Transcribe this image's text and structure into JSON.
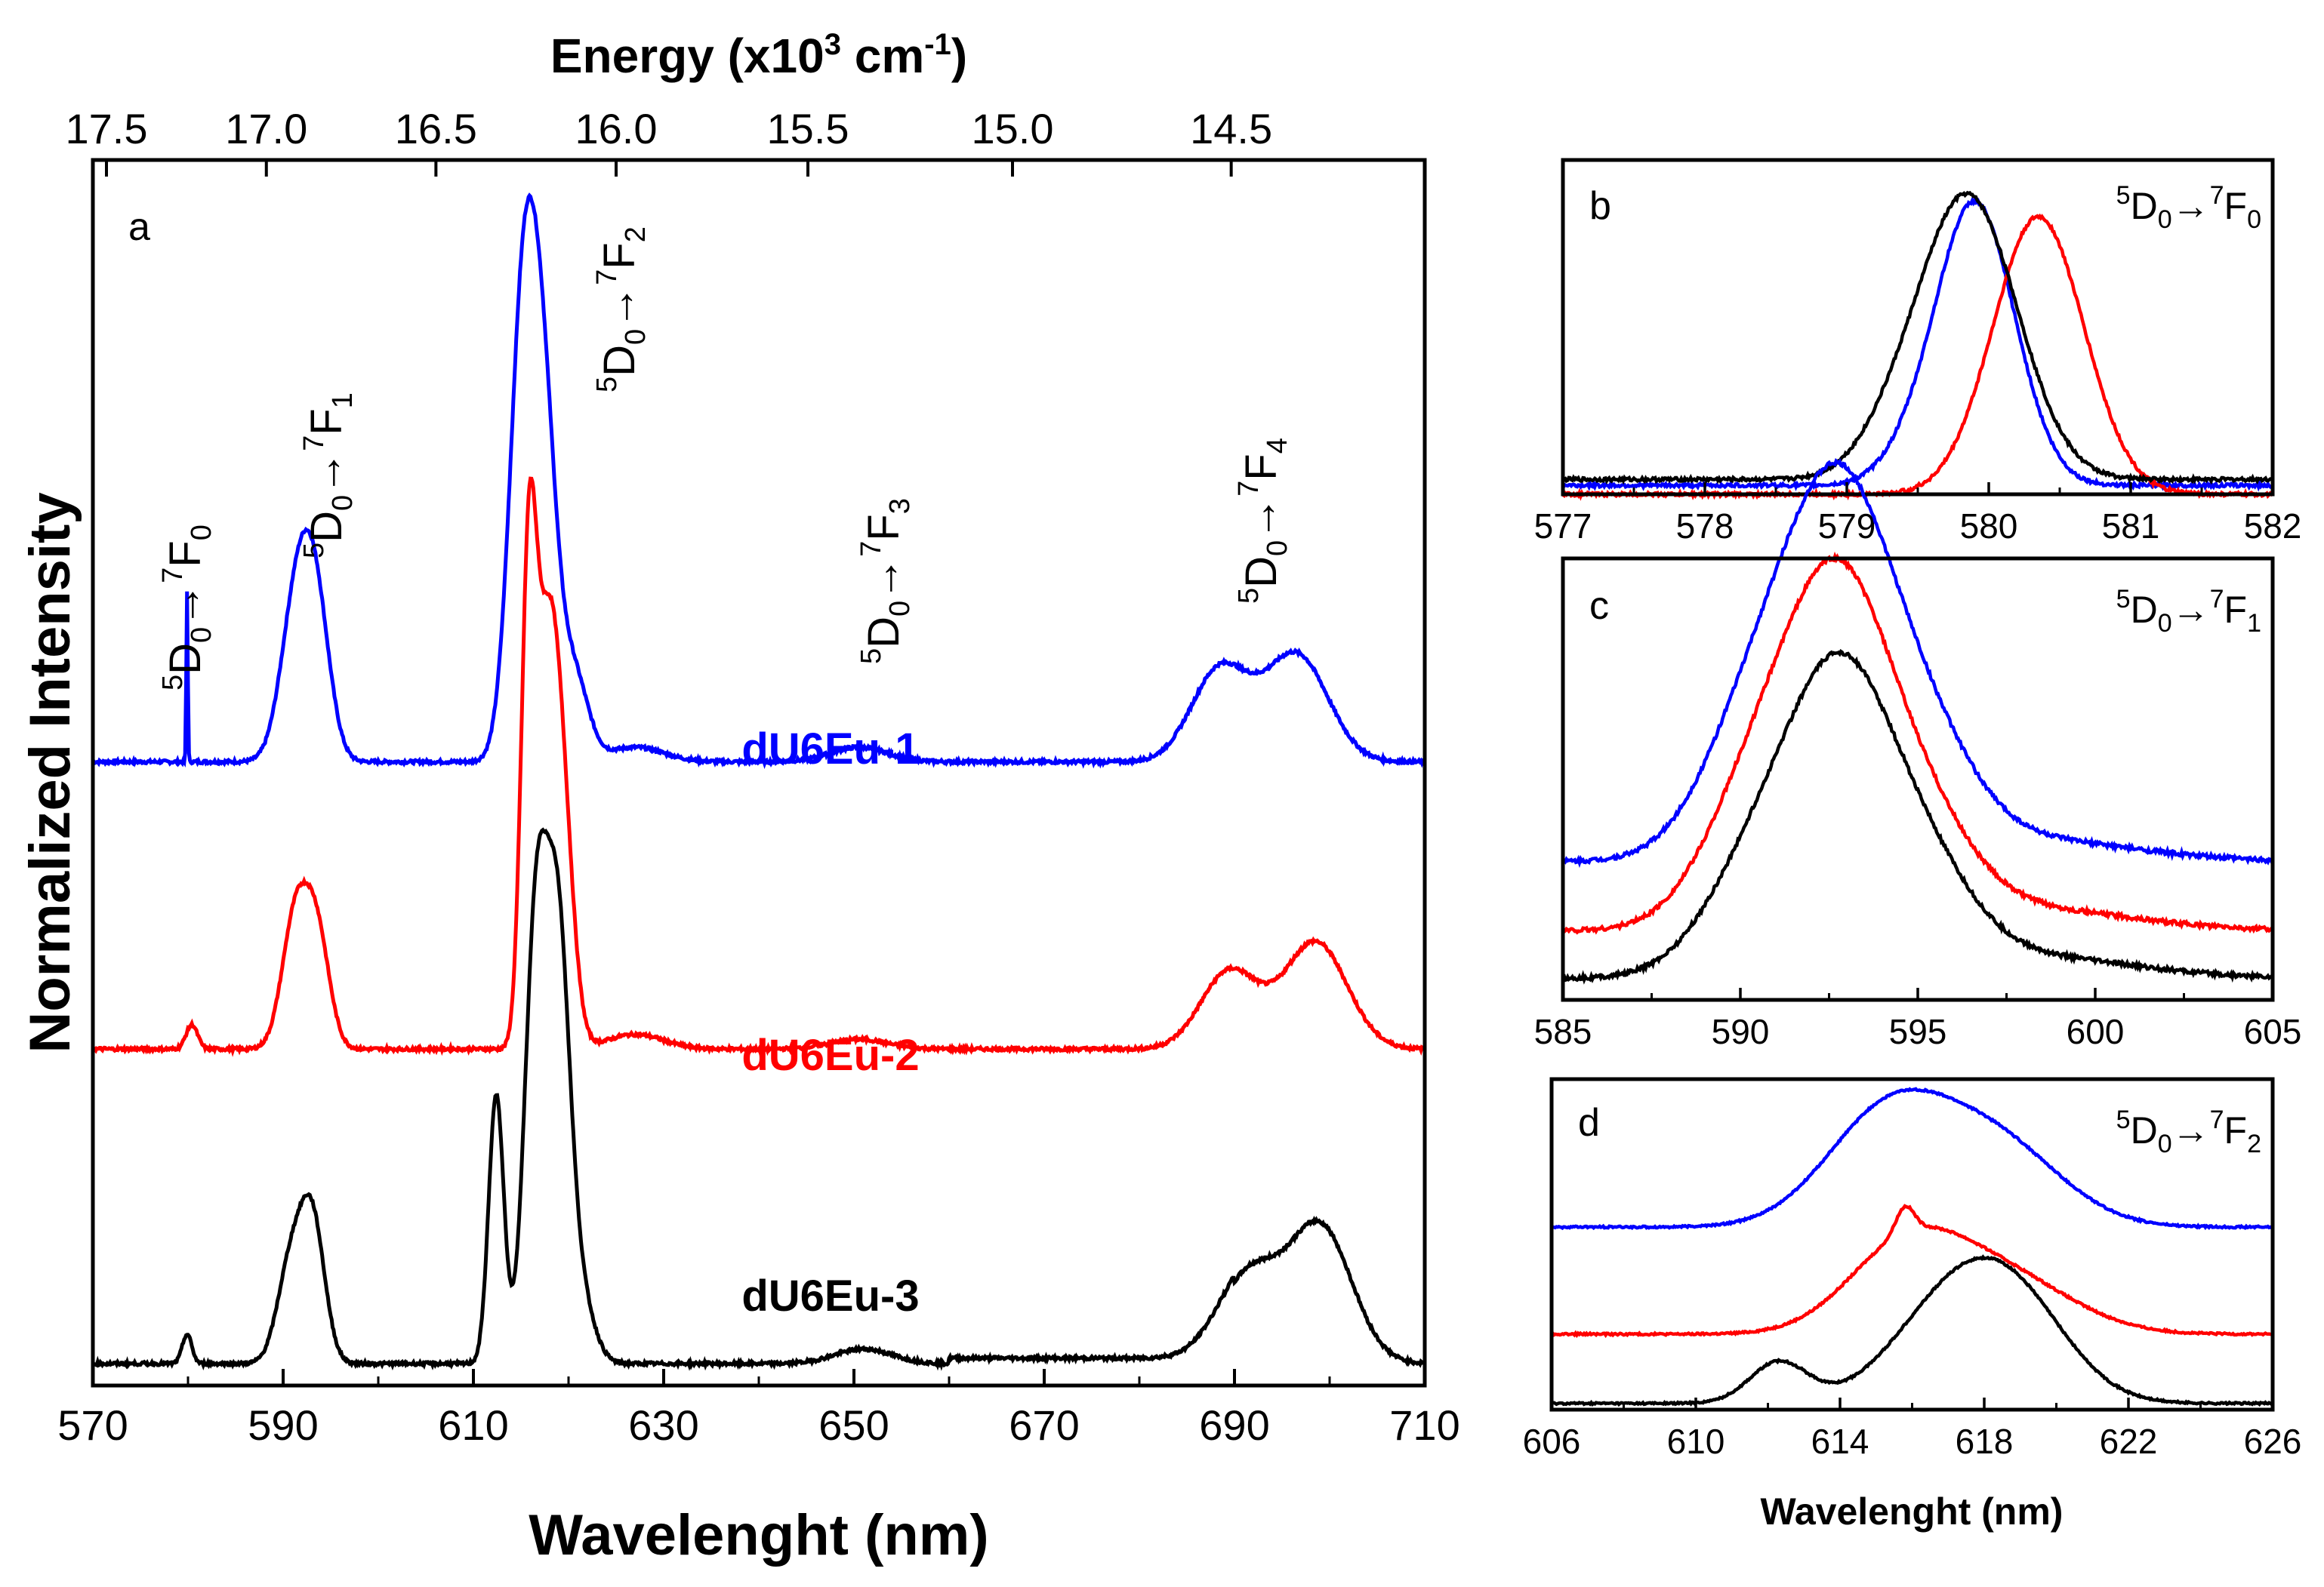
{
  "chart_data": [
    {
      "panel": "a",
      "type": "line",
      "xlabel": "Wavelenght (nm)",
      "ylabel": "Normalized Intensity",
      "x2label_main": "Energy (x10",
      "x2label_sup": "3",
      "x2label_unit": " cm",
      "x2label_unit_sup": "-1",
      "x2label_end": ")",
      "xlim": [
        570,
        710
      ],
      "xticks": [
        570,
        590,
        610,
        630,
        650,
        670,
        690,
        710
      ],
      "top_ticks": [
        {
          "label": "17.5",
          "energy": 17.5
        },
        {
          "label": "17.0",
          "energy": 17.0
        },
        {
          "label": "16.5",
          "energy": 16.5
        },
        {
          "label": "16.0",
          "energy": 16.0
        },
        {
          "label": "15.5",
          "energy": 15.5
        },
        {
          "label": "15.0",
          "energy": 15.0
        },
        {
          "label": "14.5",
          "energy": 14.5
        }
      ],
      "transitions": [
        {
          "upper": "5",
          "D": "D",
          "Dsub": "0",
          "arrow": "→",
          "lower": "7",
          "F": "F",
          "Fsub": "0"
        },
        {
          "upper": "5",
          "D": "D",
          "Dsub": "0",
          "arrow": "→",
          "lower": "7",
          "F": "F",
          "Fsub": "1"
        },
        {
          "upper": "5",
          "D": "D",
          "Dsub": "0",
          "arrow": "→",
          "lower": "7",
          "F": "F",
          "Fsub": "2"
        },
        {
          "upper": "5",
          "D": "D",
          "Dsub": "0",
          "arrow": "→",
          "lower": "7",
          "F": "F",
          "Fsub": "3"
        },
        {
          "upper": "5",
          "D": "D",
          "Dsub": "0",
          "arrow": "→",
          "lower": "7",
          "F": "F",
          "Fsub": "4"
        }
      ],
      "series": [
        {
          "name": "dU6Eu-1",
          "color": "#0000ff",
          "baseline": 2.2,
          "scale": 1.78,
          "peaks": [
            [
              579.9,
              0.35,
              0.08
            ],
            [
              591.3,
              0.3,
              1.6
            ],
            [
              593.4,
              0.3,
              1.5
            ],
            [
              615.4,
              1.0,
              1.5
            ],
            [
              617.6,
              0.5,
              1.3
            ],
            [
              620.5,
              0.18,
              1.5
            ],
            [
              627.0,
              0.03,
              3
            ],
            [
              650.5,
              0.03,
              3
            ],
            [
              688.5,
              0.19,
              3.0
            ],
            [
              696.5,
              0.22,
              3.3
            ]
          ]
        },
        {
          "name": "dU6Eu-2",
          "color": "#ff0000",
          "baseline": 1.15,
          "scale": 1.78,
          "peaks": [
            [
              580.4,
              0.05,
              0.6
            ],
            [
              591.3,
              0.27,
              1.4
            ],
            [
              593.6,
              0.22,
              1.3
            ],
            [
              615.8,
              0.9,
              0.8
            ],
            [
              617.6,
              0.7,
              1.2
            ],
            [
              619.3,
              0.45,
              1.2
            ],
            [
              627.0,
              0.03,
              3
            ],
            [
              650.5,
              0.02,
              3
            ],
            [
              689.5,
              0.16,
              3.0
            ],
            [
              698.5,
              0.22,
              3.3
            ]
          ]
        },
        {
          "name": "dU6Eu-3",
          "color": "#000000",
          "baseline": 0.0,
          "scale": 1.78,
          "peaks": [
            [
              579.9,
              0.06,
              0.5
            ],
            [
              590.8,
              0.2,
              1.4
            ],
            [
              593.1,
              0.28,
              1.3
            ],
            [
              612.4,
              0.55,
              0.8
            ],
            [
              616.6,
              0.9,
              1.2
            ],
            [
              618.9,
              0.8,
              1.2
            ],
            [
              621.0,
              0.15,
              1.5
            ],
            [
              651.0,
              0.03,
              3
            ],
            [
              691.5,
              0.18,
              3.2
            ],
            [
              699.0,
              0.28,
              3.3
            ]
          ]
        }
      ]
    },
    {
      "panel": "b",
      "type": "line",
      "xlim": [
        577,
        582
      ],
      "xticks": [
        577,
        578,
        579,
        580,
        581,
        582
      ],
      "transition": {
        "upper": "5",
        "D": "D",
        "Dsub": "0",
        "arrow": "→",
        "lower": "7",
        "F": "F",
        "Fsub": "0"
      },
      "series": [
        {
          "name": "dU6Eu-1",
          "color": "#0000ff",
          "center": 579.9,
          "sigma": 0.28,
          "baseline": 0.03
        },
        {
          "name": "dU6Eu-2",
          "color": "#ff0000",
          "center": 580.35,
          "sigma": 0.32,
          "baseline": 0.0
        },
        {
          "name": "dU6Eu-3",
          "color": "#000000",
          "center": 579.85,
          "sigma": 0.35,
          "baseline": 0.05
        }
      ]
    },
    {
      "panel": "c",
      "type": "line",
      "xlim": [
        585,
        605
      ],
      "xticks": [
        585,
        590,
        595,
        600,
        605
      ],
      "transition": {
        "upper": "5",
        "D": "D",
        "Dsub": "0",
        "arrow": "→",
        "lower": "7",
        "F": "F",
        "Fsub": "1"
      },
      "series": [
        {
          "name": "dU6Eu-1",
          "color": "#0000ff",
          "baseline": 0.32
        },
        {
          "name": "dU6Eu-2",
          "color": "#ff0000",
          "baseline": 0.16
        },
        {
          "name": "dU6Eu-3",
          "color": "#000000",
          "baseline": 0.05
        }
      ]
    },
    {
      "panel": "d",
      "type": "line",
      "xlabel": "Wavelenght (nm)",
      "xlim": [
        606,
        626
      ],
      "xticks": [
        606,
        610,
        614,
        618,
        622,
        626
      ],
      "transition": {
        "upper": "5",
        "D": "D",
        "Dsub": "0",
        "arrow": "→",
        "lower": "7",
        "F": "F",
        "Fsub": "2"
      },
      "series": [
        {
          "name": "dU6Eu-1",
          "color": "#0000ff",
          "baseline": 0.58
        },
        {
          "name": "dU6Eu-2",
          "color": "#ff0000",
          "baseline": 0.24
        },
        {
          "name": "dU6Eu-3",
          "color": "#000000",
          "baseline": 0.02
        }
      ]
    }
  ]
}
